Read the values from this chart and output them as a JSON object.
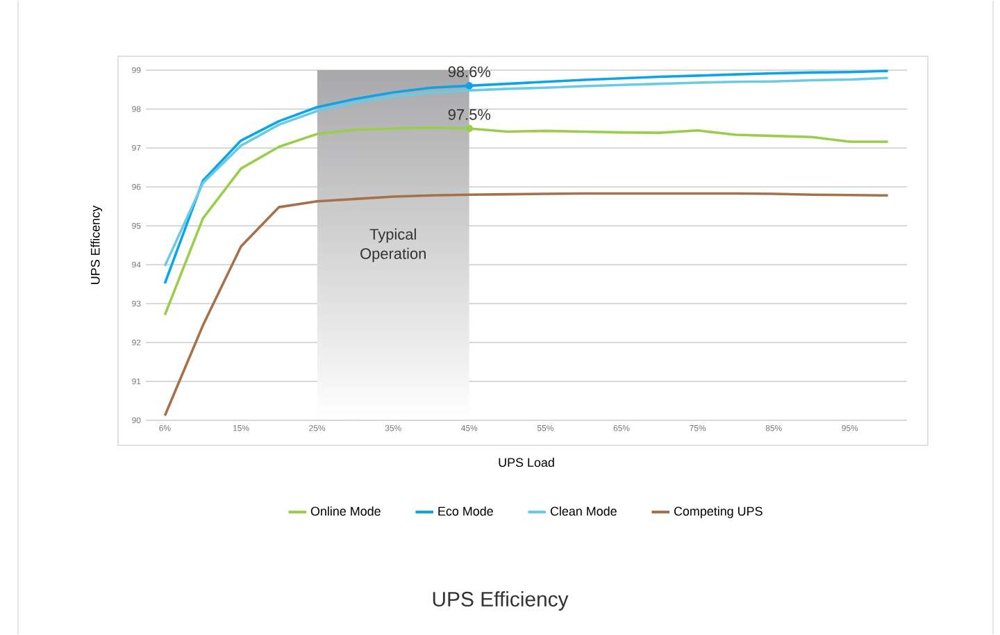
{
  "chart_data": {
    "type": "line",
    "title": "UPS Efficiency",
    "xlabel": "UPS Load",
    "ylabel": "UPS Efficency",
    "categories": [
      "6%",
      null,
      "15%",
      null,
      "25%",
      null,
      "35%",
      null,
      "45%",
      null,
      "55%",
      null,
      "65%",
      null,
      "75%",
      null,
      "85%",
      null,
      "95%",
      null
    ],
    "series": [
      {
        "name": "Online Mode",
        "color": "#9acd4a",
        "values": [
          92.71,
          95.19,
          96.47,
          97.03,
          97.36,
          97.47,
          97.5,
          97.52,
          97.5,
          97.42,
          97.44,
          97.42,
          97.4,
          97.39,
          97.45,
          97.34,
          97.31,
          97.28,
          97.16,
          97.16
        ]
      },
      {
        "name": "Eco Mode",
        "color": "#0aa5e8",
        "values": [
          93.52,
          96.16,
          97.19,
          97.69,
          98.05,
          98.26,
          98.43,
          98.55,
          98.6,
          98.65,
          98.7,
          98.75,
          98.79,
          98.83,
          98.86,
          98.89,
          98.92,
          98.94,
          98.95,
          98.98
        ]
      },
      {
        "name": "Clean Mode",
        "color": "#6ccbe4",
        "values": [
          93.97,
          96.1,
          97.06,
          97.6,
          97.95,
          98.17,
          98.32,
          98.42,
          98.48,
          98.52,
          98.55,
          98.59,
          98.62,
          98.65,
          98.68,
          98.7,
          98.71,
          98.74,
          98.76,
          98.8
        ]
      },
      {
        "name": "Competing UPS",
        "color": "#a5704a",
        "values": [
          90.12,
          92.44,
          94.47,
          95.48,
          95.63,
          95.69,
          95.75,
          95.78,
          95.8,
          95.81,
          95.82,
          95.83,
          95.83,
          95.83,
          95.83,
          95.83,
          95.82,
          95.8,
          95.79,
          95.78
        ]
      }
    ],
    "ylim": [
      90,
      99
    ],
    "yticks": [
      90,
      91,
      92,
      93,
      94,
      95,
      96,
      97,
      98,
      99
    ],
    "grid": "y",
    "legend": "bottom",
    "bands": [
      {
        "axis": "x",
        "from": "25%",
        "to": "45%",
        "label": "Typical Operation",
        "color": "#a8a8aa"
      }
    ],
    "annotations": [
      {
        "text": "98.6%",
        "x": "45%",
        "y": 98.6
      },
      {
        "text": "97.5%",
        "x": "45%",
        "y": 97.5
      }
    ]
  }
}
